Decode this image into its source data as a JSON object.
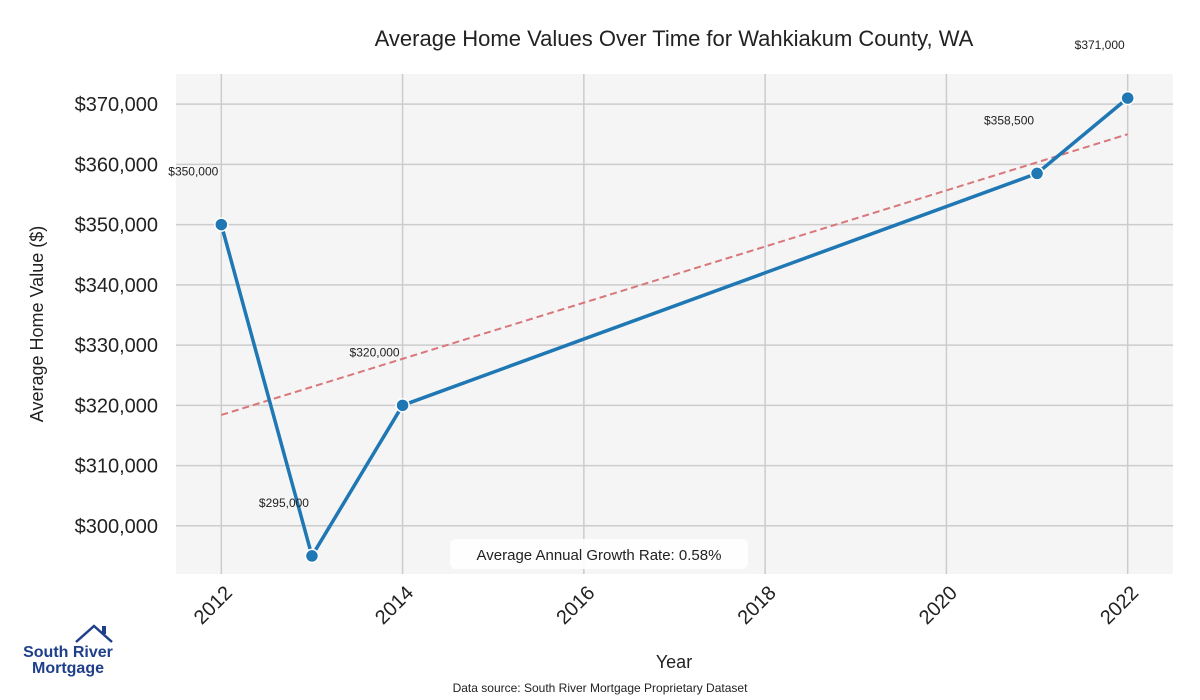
{
  "chart_data": {
    "type": "line",
    "title": "Average Home Values Over Time for Wahkiakum County, WA",
    "xlabel": "Year",
    "ylabel": "Average Home Value ($)",
    "x": [
      2012,
      2013,
      2014,
      2021,
      2022
    ],
    "values": [
      350000,
      295000,
      320000,
      358500,
      371000
    ],
    "point_labels": [
      "$350,000",
      "$295,000",
      "$320,000",
      "$358,500",
      "$371,000"
    ],
    "xticks": [
      "2012",
      "2014",
      "2016",
      "2018",
      "2020",
      "2022"
    ],
    "yticks": [
      "$300,000",
      "$310,000",
      "$320,000",
      "$330,000",
      "$340,000",
      "$350,000",
      "$360,000",
      "$370,000"
    ],
    "xlim": [
      2011.5,
      2022.5
    ],
    "ylim": [
      292000,
      375000
    ],
    "trendline": {
      "x": [
        2012,
        2022
      ],
      "values": [
        318400,
        365000
      ],
      "color": "#d9777a",
      "style": "dashed"
    },
    "series_color": "#1f77b4",
    "grid": true,
    "annotation": "Average Annual Growth Rate: 0.58%"
  },
  "logo": {
    "line1": "South River",
    "line2": "Mortgage",
    "icon": "house-roof-icon"
  },
  "source": "Data source: South River Mortgage Proprietary Dataset"
}
